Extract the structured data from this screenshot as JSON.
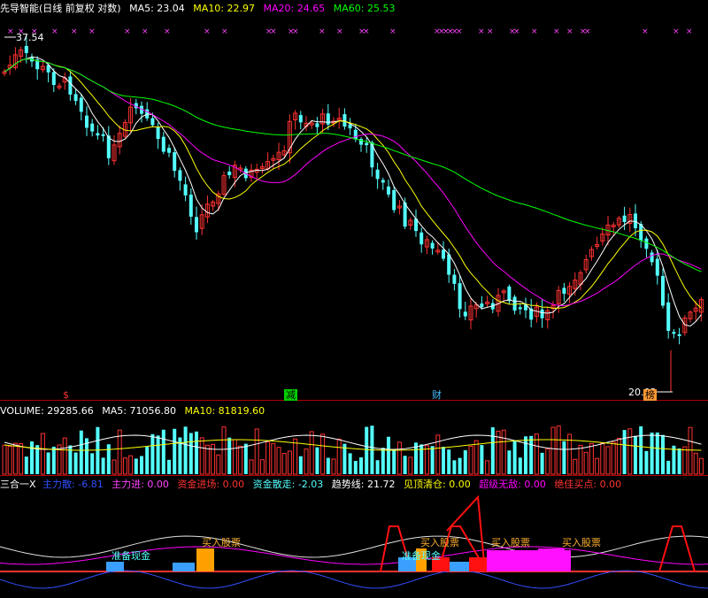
{
  "main_header": {
    "title": "先导智能(日线 前复权 对数)",
    "ma5": "MA5: 23.04",
    "ma10": "MA10: 22.97",
    "ma20": "MA20: 24.65",
    "ma60": "MA60: 25.53"
  },
  "price_labels": {
    "high": "37.54",
    "low": "20.03"
  },
  "event_marks": {
    "s": "$",
    "jian": "减",
    "cai": "财",
    "bang": "榜"
  },
  "volume_header": {
    "volume": "VOLUME: 29285.66",
    "ma5": "MA5: 71056.80",
    "ma10": "MA10: 81819.60"
  },
  "indicator_header": {
    "name": "三合一X",
    "zlsan": "主力散: -6.81",
    "zljin": "主力进: 0.00",
    "zjjc": "资金进场: 0.00",
    "zjsz": "资金散走: -2.03",
    "qsx": "趋势线: 21.72",
    "jdqc": "见顶清仓: 0.00",
    "cjwd": "超级无敌: 0.00",
    "jjmd": "绝佳买点: 0.00"
  },
  "indicator_labels": {
    "zbxj": "准备现金",
    "buy1": "买入股票",
    "buy2": "买入股票",
    "buy3": "买入股票",
    "buy4": "买入股票",
    "zbxj2": "准备现金"
  },
  "colors": {
    "up": "#ff3232",
    "down": "#54ffff",
    "ma5": "#ffffff",
    "ma10": "#ffff00",
    "ma20": "#ff00ff",
    "ma60": "#00ff00",
    "grid": "#b00000"
  }
}
